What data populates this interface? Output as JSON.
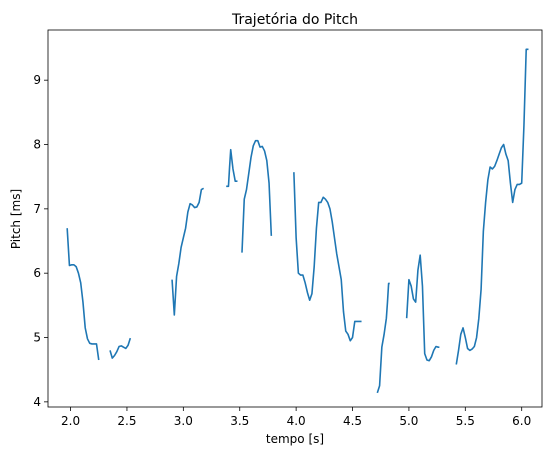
{
  "chart_data": {
    "type": "line",
    "title": "Trajetória do Pitch",
    "xlabel": "tempo [s]",
    "ylabel": "Pitch [ms]",
    "xlim": [
      1.8,
      6.18
    ],
    "ylim": [
      3.92,
      9.78
    ],
    "xticks": [
      2.0,
      2.5,
      3.0,
      3.5,
      4.0,
      4.5,
      5.0,
      5.5,
      6.0
    ],
    "xtick_labels": [
      "2.0",
      "2.5",
      "3.0",
      "3.5",
      "4.0",
      "4.5",
      "5.0",
      "5.5",
      "6.0"
    ],
    "yticks": [
      4,
      5,
      6,
      7,
      8,
      9
    ],
    "ytick_labels": [
      "4",
      "5",
      "6",
      "7",
      "8",
      "9"
    ],
    "grid": false,
    "line_color": "#1f77b4",
    "segments": [
      {
        "x": [
          1.97,
          1.99,
          2.01,
          2.03,
          2.05,
          2.07,
          2.09,
          2.11,
          2.13,
          2.15,
          2.17,
          2.19,
          2.21,
          2.23,
          2.25
        ],
        "y": [
          6.7,
          6.12,
          6.13,
          6.13,
          6.1,
          6.0,
          5.85,
          5.55,
          5.15,
          4.98,
          4.91,
          4.9,
          4.9,
          4.9,
          4.65
        ]
      },
      {
        "x": [
          2.35,
          2.37,
          2.39,
          2.41,
          2.43,
          2.45,
          2.47,
          2.49,
          2.51,
          2.53
        ],
        "y": [
          4.8,
          4.68,
          4.72,
          4.78,
          4.86,
          4.87,
          4.85,
          4.83,
          4.88,
          4.99
        ]
      },
      {
        "x": [
          2.9,
          2.92,
          2.94,
          2.96,
          2.98,
          3.0,
          3.02,
          3.04,
          3.06,
          3.08,
          3.1,
          3.12,
          3.14,
          3.16,
          3.18
        ],
        "y": [
          5.9,
          5.35,
          5.95,
          6.15,
          6.4,
          6.55,
          6.7,
          6.95,
          7.08,
          7.06,
          7.02,
          7.03,
          7.1,
          7.3,
          7.32
        ]
      },
      {
        "x": [
          3.38,
          3.4,
          3.41,
          3.42,
          3.44,
          3.46,
          3.48
        ],
        "y": [
          7.35,
          7.35,
          7.65,
          7.92,
          7.62,
          7.43,
          7.43
        ]
      },
      {
        "x": [
          3.52,
          3.54,
          3.56,
          3.58,
          3.6,
          3.62,
          3.64,
          3.66,
          3.68,
          3.7,
          3.72,
          3.74,
          3.76,
          3.78
        ],
        "y": [
          6.32,
          7.15,
          7.3,
          7.55,
          7.8,
          7.98,
          8.06,
          8.06,
          7.96,
          7.97,
          7.9,
          7.75,
          7.4,
          6.58
        ]
      },
      {
        "x": [
          3.98,
          4.0,
          4.02,
          4.04,
          4.06,
          4.08,
          4.1,
          4.12,
          4.14,
          4.16,
          4.18,
          4.2,
          4.22,
          4.24,
          4.26,
          4.28,
          4.3,
          4.32,
          4.34,
          4.36,
          4.38,
          4.4,
          4.42,
          4.44,
          4.46,
          4.48,
          4.5,
          4.52,
          4.54,
          4.56,
          4.58
        ],
        "y": [
          7.57,
          6.55,
          6.0,
          5.97,
          5.97,
          5.85,
          5.7,
          5.58,
          5.68,
          6.1,
          6.7,
          7.1,
          7.1,
          7.18,
          7.15,
          7.1,
          7.0,
          6.8,
          6.55,
          6.3,
          6.1,
          5.9,
          5.4,
          5.1,
          5.05,
          4.95,
          5.0,
          5.25,
          5.25,
          5.25,
          5.25
        ]
      },
      {
        "x": [
          4.72,
          4.74,
          4.76,
          4.78,
          4.8,
          4.81,
          4.82,
          4.83
        ],
        "y": [
          4.14,
          4.25,
          4.85,
          5.05,
          5.3,
          5.55,
          5.84,
          5.84
        ]
      },
      {
        "x": [
          4.98,
          5.0,
          5.02,
          5.04,
          5.06,
          5.08,
          5.1,
          5.12,
          5.14,
          5.16,
          5.18,
          5.2,
          5.22,
          5.24,
          5.26,
          5.27
        ],
        "y": [
          5.3,
          5.9,
          5.8,
          5.6,
          5.55,
          6.05,
          6.28,
          5.8,
          4.75,
          4.65,
          4.64,
          4.7,
          4.8,
          4.86,
          4.85,
          4.85
        ]
      },
      {
        "x": [
          5.42,
          5.44,
          5.46,
          5.48,
          5.5,
          5.52,
          5.54,
          5.56,
          5.58,
          5.6,
          5.62,
          5.64,
          5.66,
          5.68,
          5.7,
          5.72,
          5.74,
          5.76,
          5.78,
          5.8,
          5.82,
          5.84,
          5.86,
          5.88,
          5.9,
          5.92,
          5.94,
          5.96,
          5.98,
          6.0,
          6.02,
          6.04,
          6.06
        ],
        "y": [
          4.58,
          4.8,
          5.05,
          5.15,
          5.0,
          4.83,
          4.8,
          4.82,
          4.86,
          5.0,
          5.3,
          5.75,
          6.65,
          7.1,
          7.45,
          7.65,
          7.62,
          7.66,
          7.75,
          7.85,
          7.95,
          8.0,
          7.85,
          7.75,
          7.4,
          7.1,
          7.3,
          7.38,
          7.38,
          7.4,
          8.3,
          9.48,
          9.48
        ]
      }
    ]
  }
}
